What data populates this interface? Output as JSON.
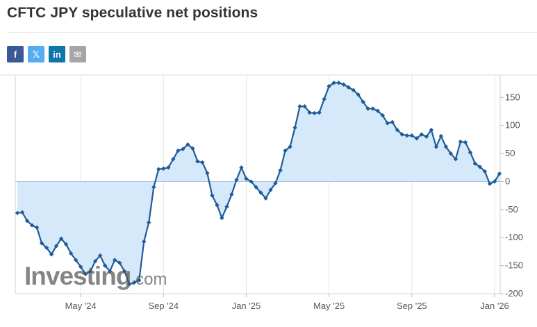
{
  "page": {
    "title": "CFTC JPY speculative net positions"
  },
  "share": [
    {
      "name": "facebook-button",
      "icon": "facebook-icon",
      "glyph": "f",
      "color": "#3b5998"
    },
    {
      "name": "twitter-button",
      "icon": "twitter-icon",
      "glyph": "𝕏",
      "color": "#55acee"
    },
    {
      "name": "linkedin-button",
      "icon": "linkedin-icon",
      "glyph": "in",
      "color": "#0e76a8"
    },
    {
      "name": "email-button",
      "icon": "email-icon",
      "glyph": "✉",
      "color": "#a6a6a6"
    }
  ],
  "watermark": {
    "brand": "Investing",
    "suffix": ".com"
  },
  "colors": {
    "line": "#1f5c99",
    "area": "#d6e9fb",
    "zero_line": "#a7c4de",
    "grid": "#e6e6e6"
  },
  "chart_data": {
    "type": "area",
    "title": "CFTC JPY speculative net positions",
    "xlabel": "",
    "ylabel": "",
    "ylim": [
      -200,
      190
    ],
    "yticks": [
      -200,
      -150,
      -100,
      -50,
      0,
      50,
      100,
      150
    ],
    "xticks": [
      "May '24",
      "Sep '24",
      "Jan '25",
      "May '25",
      "Sep '25",
      "Jan '26"
    ],
    "xtick_index": [
      13,
      30,
      47,
      64,
      81,
      98
    ],
    "grid": true,
    "legend": "none",
    "series": [
      {
        "values": [
          -56,
          -55,
          -70,
          -78,
          -82,
          -110,
          -118,
          -130,
          -115,
          -102,
          -112,
          -128,
          -140,
          -152,
          -165,
          -160,
          -142,
          -132,
          -150,
          -160,
          -140,
          -145,
          -160,
          -183,
          -180,
          -176,
          -107,
          -73,
          -10,
          22,
          23,
          25,
          40,
          55,
          58,
          66,
          59,
          36,
          34,
          15,
          -25,
          -42,
          -65,
          -45,
          -23,
          3,
          25,
          5,
          0,
          -10,
          -20,
          -30,
          -15,
          -3,
          20,
          55,
          62,
          96,
          134,
          134,
          123,
          122,
          123,
          147,
          170,
          176,
          176,
          173,
          168,
          163,
          155,
          142,
          130,
          130,
          126,
          118,
          104,
          106,
          92,
          84,
          82,
          82,
          77,
          84,
          80,
          92,
          62,
          81,
          62,
          50,
          40,
          71,
          70,
          52,
          32,
          26,
          18,
          -4,
          0,
          14
        ]
      }
    ]
  }
}
